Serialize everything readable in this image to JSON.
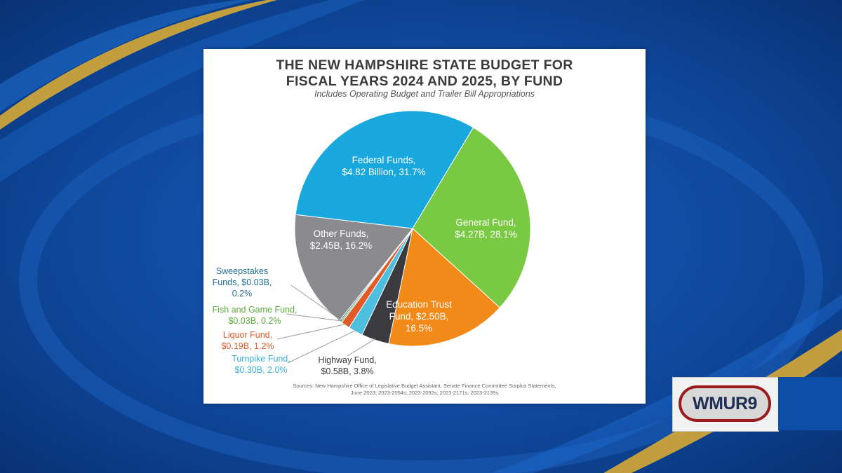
{
  "colors": {
    "federal": "#19a8dd",
    "general": "#7ac943",
    "education": "#f28a1a",
    "highway": "#3a3a3f",
    "turnpike": "#4fbfe0",
    "liquor": "#e15a28",
    "fish_game": "#6ab44a",
    "sweepstakes": "#1f6e8c",
    "other": "#8a8a8f",
    "gold_swoosh": "#d6a936"
  },
  "chart_data": {
    "type": "pie",
    "title": [
      "THE NEW HAMPSHIRE STATE BUDGET FOR",
      "FISCAL YEARS 2024 AND 2025, BY FUND"
    ],
    "subtitle": "Includes Operating Budget and Trailer Bill Appropriations",
    "unit": "billion USD",
    "slices": [
      {
        "name": "General Fund",
        "value": 4.27,
        "percent": 28.1,
        "color": "#7ac943",
        "label": [
          "General Fund,",
          "$4.27B, 28.1%"
        ]
      },
      {
        "name": "Education Trust Fund",
        "value": 2.5,
        "percent": 16.5,
        "color": "#f28a1a",
        "label": [
          "Education Trust",
          "Fund, $2.50B,",
          "16.5%"
        ]
      },
      {
        "name": "Highway Fund",
        "value": 0.58,
        "percent": 3.8,
        "color": "#3a3a3f",
        "label": [
          "Highway Fund,",
          "$0.58B, 3.8%"
        ]
      },
      {
        "name": "Turnpike Fund",
        "value": 0.3,
        "percent": 2.0,
        "color": "#4fbfe0",
        "label": [
          "Turnpike Fund,",
          "$0.30B, 2.0%"
        ]
      },
      {
        "name": "Liquor Fund",
        "value": 0.19,
        "percent": 1.2,
        "color": "#e15a28",
        "label": [
          "Liquor Fund,",
          "$0.19B, 1.2%"
        ]
      },
      {
        "name": "Fish and Game Fund",
        "value": 0.03,
        "percent": 0.2,
        "color": "#6ab44a",
        "label": [
          "Fish and Game Fund,",
          "$0.03B, 0.2%"
        ]
      },
      {
        "name": "Sweepstakes Funds",
        "value": 0.03,
        "percent": 0.2,
        "color": "#1f6e8c",
        "label": [
          "Sweepstakes",
          "Funds, $0.03B,",
          "0.2%"
        ]
      },
      {
        "name": "Other Funds",
        "value": 2.45,
        "percent": 16.2,
        "color": "#8a8a8f",
        "label": [
          "Other Funds,",
          "$2.45B, 16.2%"
        ]
      },
      {
        "name": "Federal Funds",
        "value": 4.82,
        "percent": 31.7,
        "color": "#19a8dd",
        "label": [
          "Federal Funds,",
          "$4.82 Billion, 31.7%"
        ]
      }
    ],
    "start_angle_deg": 31,
    "direction": "clockwise",
    "sources": [
      "Sources: New Hampshire Office of Legislative Budget Assistant, Senate Finance Committee Surplus Statements,",
      "June 2023; 2023-2054s; 2023-2092s; 2023-2171s; 2023-2139s"
    ]
  },
  "logo": {
    "text": "WMUR9"
  }
}
